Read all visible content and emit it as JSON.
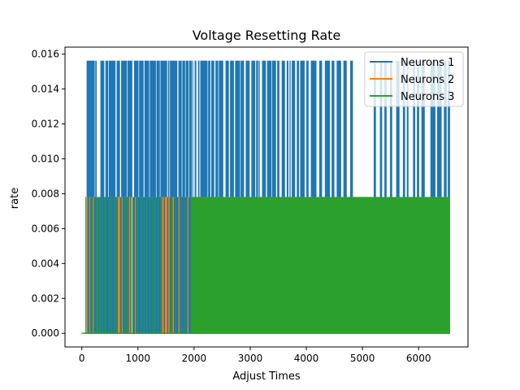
{
  "chart_data": {
    "type": "line",
    "title": "Voltage Resetting Rate",
    "xlabel": "Adjust Times",
    "ylabel": "rate",
    "xlim": [
      -300,
      6880
    ],
    "ylim": [
      -0.00078,
      0.0164
    ],
    "x_ticks": [
      0,
      1000,
      2000,
      3000,
      4000,
      5000,
      6000
    ],
    "y_ticks": [
      0.0,
      0.002,
      0.004,
      0.006,
      0.008,
      0.01,
      0.012,
      0.014,
      0.016
    ],
    "y_tick_labels": [
      "0.000",
      "0.002",
      "0.004",
      "0.006",
      "0.008",
      "0.010",
      "0.012",
      "0.014",
      "0.016"
    ],
    "grid": false,
    "legend_position": "top-right",
    "x_range": [
      0,
      6560
    ],
    "series": [
      {
        "name": "Neurons 1",
        "color": "#1f77b4",
        "levels": [
          0.0,
          0.0078125,
          0.015625
        ],
        "high_segments": [
          [
            85,
            230
          ],
          [
            240,
            265
          ],
          [
            330,
            400
          ],
          [
            420,
            470
          ],
          [
            480,
            600
          ],
          [
            620,
            680
          ],
          [
            700,
            800
          ],
          [
            810,
            900
          ],
          [
            930,
            1010
          ],
          [
            1020,
            1100
          ],
          [
            1115,
            1200
          ],
          [
            1210,
            1320
          ],
          [
            1330,
            1390
          ],
          [
            1400,
            1520
          ],
          [
            1535,
            1560
          ],
          [
            1570,
            1700
          ],
          [
            1720,
            1780
          ],
          [
            1790,
            1840
          ],
          [
            1850,
            1900
          ],
          [
            1910,
            1960
          ],
          [
            1970,
            1980
          ],
          [
            2010,
            2040
          ],
          [
            2070,
            2095
          ],
          [
            2110,
            2240
          ],
          [
            2250,
            2290
          ],
          [
            2305,
            2360
          ],
          [
            2380,
            2430
          ],
          [
            2440,
            2520
          ],
          [
            2560,
            2620
          ],
          [
            2640,
            2710
          ],
          [
            2730,
            2820
          ],
          [
            2830,
            2890
          ],
          [
            2920,
            2990
          ],
          [
            3020,
            3090
          ],
          [
            3105,
            3140
          ],
          [
            3150,
            3170
          ],
          [
            3210,
            3280
          ],
          [
            3300,
            3380
          ],
          [
            3390,
            3460
          ],
          [
            3480,
            3520
          ],
          [
            3560,
            3620
          ],
          [
            3650,
            3680
          ],
          [
            3700,
            3720
          ],
          [
            3740,
            3800
          ],
          [
            3830,
            3870
          ],
          [
            3890,
            3970
          ],
          [
            4000,
            4040
          ],
          [
            4080,
            4180
          ],
          [
            4230,
            4280
          ],
          [
            4330,
            4420
          ],
          [
            4450,
            4500
          ],
          [
            4540,
            4620
          ],
          [
            4660,
            4720
          ],
          [
            4780,
            4830
          ],
          [
            5200,
            5240
          ],
          [
            5310,
            5350
          ],
          [
            5390,
            5430
          ],
          [
            5490,
            5530
          ],
          [
            5600,
            5660
          ],
          [
            5720,
            5760
          ],
          [
            5790,
            5820
          ],
          [
            5900,
            5940
          ],
          [
            5970,
            6010
          ],
          [
            6050,
            6110
          ],
          [
            6210,
            6300
          ],
          [
            6330,
            6410
          ],
          [
            6450,
            6500
          ],
          [
            6520,
            6560
          ]
        ],
        "zero_segments": [
          [
            0,
            80
          ],
          [
            890,
            905
          ],
          [
            2000,
            2060
          ],
          [
            3010,
            3015
          ],
          [
            4040,
            4060
          ]
        ]
      },
      {
        "name": "Neurons 2",
        "color": "#ff7f0e",
        "levels": [
          0.0,
          0.0078125
        ],
        "high_segments": [
          [
            85,
            95
          ],
          [
            130,
            145
          ],
          [
            200,
            215
          ],
          [
            640,
            680
          ],
          [
            715,
            730
          ],
          [
            840,
            880
          ],
          [
            945,
            960
          ],
          [
            1430,
            1460
          ],
          [
            1480,
            1520
          ],
          [
            1540,
            1560
          ],
          [
            1620,
            1640
          ],
          [
            1720,
            1740
          ],
          [
            1880,
            1900
          ]
        ]
      },
      {
        "name": "Neurons 3",
        "color": "#2ca02c",
        "levels": [
          0.0,
          0.0078125
        ],
        "high_segments": [
          [
            60,
            70
          ],
          [
            150,
            165
          ],
          [
            180,
            195
          ],
          [
            260,
            285
          ],
          [
            310,
            330
          ],
          [
            360,
            370
          ],
          [
            410,
            430
          ],
          [
            480,
            495
          ],
          [
            520,
            535
          ],
          [
            575,
            590
          ],
          [
            610,
            620
          ],
          [
            700,
            715
          ],
          [
            760,
            775
          ],
          [
            800,
            820
          ],
          [
            860,
            875
          ],
          [
            900,
            915
          ],
          [
            980,
            1000
          ],
          [
            1050,
            1060
          ],
          [
            1100,
            1115
          ],
          [
            1150,
            1165
          ],
          [
            1210,
            1225
          ],
          [
            1260,
            1275
          ],
          [
            1300,
            1315
          ],
          [
            1350,
            1360
          ],
          [
            1400,
            1410
          ],
          [
            1560,
            1575
          ],
          [
            1600,
            1615
          ],
          [
            1660,
            1670
          ],
          [
            1760,
            1775
          ],
          [
            1820,
            1830
          ],
          [
            1940,
            6560
          ]
        ]
      }
    ]
  }
}
